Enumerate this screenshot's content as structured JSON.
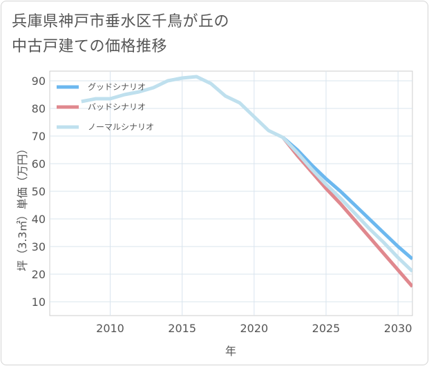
{
  "title_lines": [
    "兵庫県神戸市垂水区千鳥が丘の",
    "中古戸建ての価格推移"
  ],
  "chart_data": {
    "type": "line",
    "xlabel": "年",
    "ylabel": "坪（3.3㎡）単価（万円）",
    "xlim": [
      2005.8,
      2031
    ],
    "ylim": [
      5,
      93.5
    ],
    "xticks": [
      2010,
      2015,
      2020,
      2025,
      2030
    ],
    "yticks": [
      10,
      20,
      30,
      40,
      50,
      60,
      70,
      80,
      90
    ],
    "grid": true,
    "legend_position": "top-left",
    "series": [
      {
        "name": "グッドシナリオ",
        "color": "#6cb8ef",
        "x": [
          2022,
          2023,
          2024,
          2025,
          2026,
          2027,
          2028,
          2029,
          2030,
          2031
        ],
        "y": [
          69.5,
          65.0,
          59.5,
          54.5,
          50.0,
          45.0,
          40.0,
          35.0,
          30.0,
          25.5
        ]
      },
      {
        "name": "バッドシナリオ",
        "color": "#e0888e",
        "x": [
          2022,
          2023,
          2024,
          2025,
          2026,
          2027,
          2028,
          2029,
          2030,
          2031
        ],
        "y": [
          69.5,
          63.0,
          57.0,
          51.0,
          45.5,
          39.5,
          33.5,
          27.5,
          21.5,
          15.5
        ]
      },
      {
        "name": "ノーマルシナリオ",
        "color": "#bfe0ee",
        "x": [
          2008,
          2009,
          2010,
          2011,
          2012,
          2013,
          2014,
          2015,
          2016,
          2017,
          2018,
          2019,
          2020,
          2021,
          2022,
          2023,
          2024,
          2025,
          2026,
          2027,
          2028,
          2029,
          2030,
          2031
        ],
        "y": [
          82.5,
          83.5,
          83.5,
          85.0,
          86.0,
          87.5,
          90.0,
          91.0,
          91.5,
          89.0,
          84.5,
          82.0,
          77.0,
          72.0,
          69.5,
          64.0,
          58.0,
          52.5,
          47.5,
          42.0,
          36.5,
          31.5,
          26.0,
          21.0
        ]
      }
    ]
  }
}
